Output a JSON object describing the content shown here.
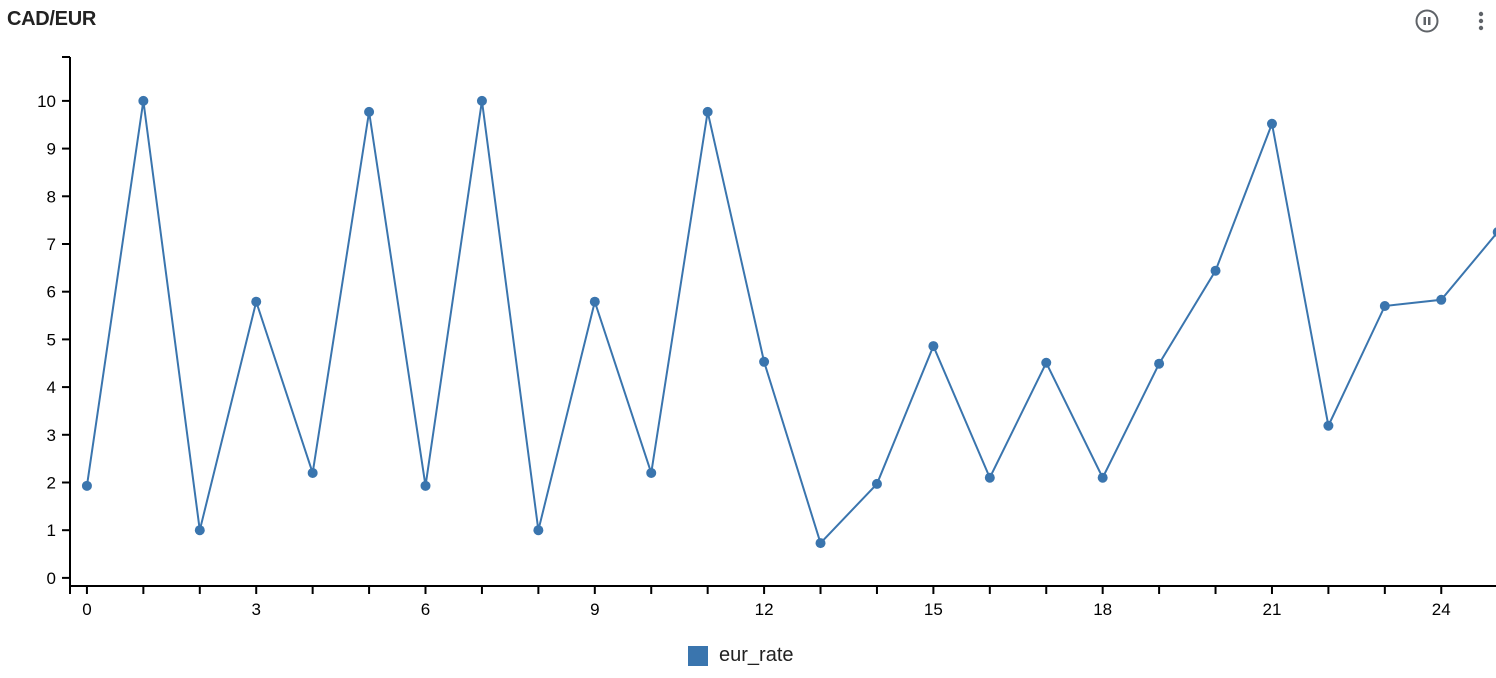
{
  "header": {
    "title": "CAD/EUR",
    "pause_icon": "pause-circle-icon",
    "menu_icon": "more-vertical-icon"
  },
  "colors": {
    "series": "#3a75ae",
    "icon": "#5f6368"
  },
  "chart_data": {
    "type": "line",
    "title": "CAD/EUR",
    "xlabel": "",
    "ylabel": "",
    "x": [
      0,
      1,
      2,
      3,
      4,
      5,
      6,
      7,
      8,
      9,
      10,
      11,
      12,
      13,
      14,
      15,
      16,
      17,
      18,
      19,
      20,
      21,
      22,
      23,
      24,
      25
    ],
    "series": [
      {
        "name": "eur_rate",
        "values": [
          1.93,
          10,
          1,
          5.79,
          2.2,
          9.77,
          1.93,
          10,
          1,
          5.79,
          2.2,
          9.77,
          4.53,
          0.73,
          1.97,
          4.86,
          2.1,
          4.51,
          2.1,
          4.49,
          6.44,
          9.52,
          3.19,
          5.7,
          5.83,
          7.25
        ]
      }
    ],
    "xlim": [
      -0.3,
      24.97
    ],
    "ylim": [
      -0.17,
      10.92
    ],
    "xticks": [
      0,
      3,
      6,
      9,
      12,
      15,
      18,
      21,
      24
    ],
    "yticks": [
      0,
      1,
      2,
      3,
      4,
      5,
      6,
      7,
      8,
      9,
      10
    ],
    "grid": false,
    "legend": "bottom"
  }
}
